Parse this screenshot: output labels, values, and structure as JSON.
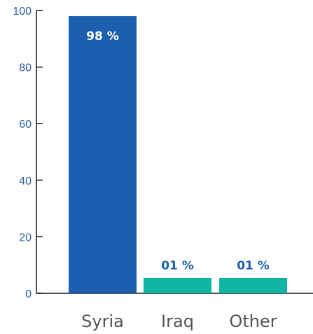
{
  "chart_data": {
    "type": "bar",
    "categories": [
      "Syria",
      "Iraq",
      "Other"
    ],
    "values": [
      98,
      1,
      1
    ],
    "data_labels": [
      "98 %",
      "01 %",
      "01 %"
    ],
    "bar_colors": [
      "#1b5fae",
      "#11b5a4",
      "#11b5a4"
    ],
    "data_label_colors": [
      "#ffffff",
      "#1b5fae",
      "#1b5fae"
    ],
    "data_label_position": [
      "inside-top",
      "above",
      "above"
    ],
    "ylim": [
      0,
      100
    ],
    "yticks": [
      0,
      20,
      40,
      60,
      80,
      100
    ],
    "ytick_labels": [
      "0",
      "20",
      "40",
      "60",
      "80",
      "100"
    ],
    "grid": false,
    "legend": "none"
  }
}
